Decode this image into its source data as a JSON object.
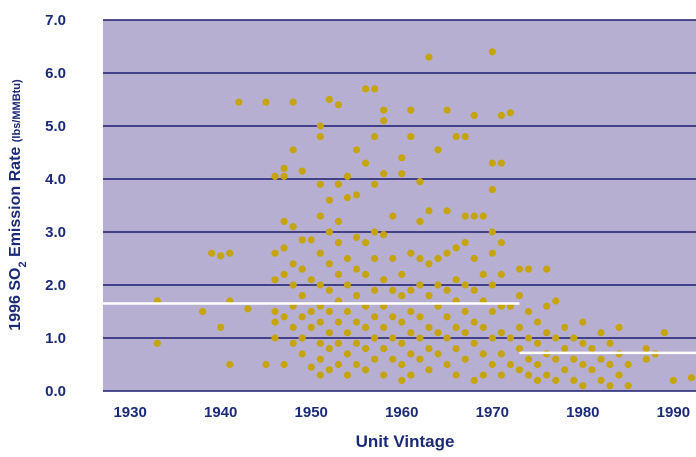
{
  "chart_data": {
    "type": "scatter",
    "xlabel": "Unit Vintage",
    "ylabel": {
      "pre": "1996 SO",
      "sub": "2",
      "post": " Emission Rate ",
      "unit": "(lbs/MMBtu)"
    },
    "xlim": [
      1927,
      1992.5
    ],
    "ylim": [
      0,
      7
    ],
    "xticks": [
      1930,
      1940,
      1950,
      1960,
      1970,
      1980,
      1990
    ],
    "yticks": [
      {
        "value": 0,
        "label": "0.0"
      },
      {
        "value": 1,
        "label": "1.0"
      },
      {
        "value": 2,
        "label": "2.0"
      },
      {
        "value": 3,
        "label": "3.0"
      },
      {
        "value": 4,
        "label": "4.0"
      },
      {
        "value": 5,
        "label": "5.0"
      },
      {
        "value": 6,
        "label": "6.0"
      },
      {
        "value": 7,
        "label": "7.0"
      }
    ],
    "grid": true,
    "background": "#b6afd2",
    "grid_color": "#1d1d6e",
    "color": "#c6a40c",
    "reference_lines": [
      {
        "x": [
          1927,
          1973
        ],
        "y": 1.65,
        "color": "#ffffff"
      },
      {
        "x": [
          1973,
          1992.5
        ],
        "y": 0.72,
        "color": "#ffffff"
      }
    ],
    "x": [
      1933,
      1933,
      1938,
      1939,
      1940,
      1940,
      1941,
      1941,
      1941,
      1942,
      1943,
      1945,
      1945,
      1946,
      1946,
      1946,
      1946,
      1946,
      1946,
      1947,
      1947,
      1947,
      1947,
      1947,
      1947,
      1947,
      1948,
      1948,
      1948,
      1948,
      1948,
      1948,
      1948,
      1948,
      1949,
      1949,
      1949,
      1949,
      1949,
      1949,
      1949,
      1950,
      1950,
      1950,
      1950,
      1950,
      1951,
      1951,
      1951,
      1951,
      1951,
      1951,
      1951,
      1951,
      1951,
      1951,
      1951,
      1952,
      1952,
      1952,
      1952,
      1952,
      1952,
      1952,
      1952,
      1952,
      1953,
      1953,
      1953,
      1953,
      1953,
      1953,
      1953,
      1953,
      1953,
      1954,
      1954,
      1954,
      1954,
      1954,
      1954,
      1954,
      1954,
      1955,
      1955,
      1955,
      1955,
      1955,
      1955,
      1955,
      1955,
      1956,
      1956,
      1956,
      1956,
      1956,
      1956,
      1956,
      1956,
      1957,
      1957,
      1957,
      1957,
      1957,
      1957,
      1957,
      1957,
      1957,
      1958,
      1958,
      1958,
      1958,
      1958,
      1958,
      1958,
      1958,
      1958,
      1959,
      1959,
      1959,
      1959,
      1959,
      1959,
      1960,
      1960,
      1960,
      1960,
      1960,
      1960,
      1960,
      1960,
      1961,
      1961,
      1961,
      1961,
      1961,
      1961,
      1961,
      1961,
      1962,
      1962,
      1962,
      1962,
      1962,
      1962,
      1962,
      1963,
      1963,
      1963,
      1963,
      1963,
      1963,
      1963,
      1964,
      1964,
      1964,
      1964,
      1964,
      1964,
      1965,
      1965,
      1965,
      1965,
      1965,
      1965,
      1965,
      1966,
      1966,
      1966,
      1966,
      1966,
      1966,
      1966,
      1967,
      1967,
      1967,
      1967,
      1967,
      1967,
      1967,
      1968,
      1968,
      1968,
      1968,
      1968,
      1968,
      1968,
      1969,
      1969,
      1969,
      1969,
      1969,
      1969,
      1970,
      1970,
      1970,
      1970,
      1970,
      1970,
      1970,
      1970,
      1970,
      1971,
      1971,
      1971,
      1971,
      1971,
      1971,
      1971,
      1971,
      1972,
      1972,
      1972,
      1972,
      1973,
      1973,
      1973,
      1973,
      1973,
      1974,
      1974,
      1974,
      1974,
      1974,
      1975,
      1975,
      1975,
      1975,
      1976,
      1976,
      1976,
      1976,
      1976,
      1977,
      1977,
      1977,
      1977,
      1978,
      1978,
      1978,
      1979,
      1979,
      1979,
      1980,
      1980,
      1980,
      1980,
      1981,
      1981,
      1982,
      1982,
      1982,
      1983,
      1983,
      1983,
      1984,
      1984,
      1984,
      1985,
      1985,
      1987,
      1987,
      1988,
      1989,
      1990,
      1992
    ],
    "values": [
      1.7,
      0.9,
      1.5,
      2.6,
      1.2,
      2.55,
      2.6,
      1.7,
      0.5,
      5.45,
      1.55,
      5.45,
      0.5,
      2.6,
      2.1,
      1.5,
      1.3,
      4.05,
      1.0,
      4.05,
      4.2,
      3.2,
      2.7,
      2.2,
      1.4,
      0.5,
      5.45,
      4.55,
      3.1,
      2.4,
      2.0,
      1.6,
      1.2,
      0.9,
      4.15,
      2.85,
      2.3,
      1.8,
      1.4,
      1.0,
      0.7,
      2.85,
      2.1,
      1.5,
      1.2,
      0.45,
      5.0,
      4.8,
      3.9,
      3.3,
      2.6,
      2.0,
      1.6,
      1.3,
      0.9,
      0.6,
      0.3,
      5.5,
      3.6,
      3.0,
      2.4,
      1.9,
      1.5,
      1.1,
      0.8,
      0.4,
      5.4,
      3.9,
      3.2,
      2.8,
      2.2,
      1.7,
      1.3,
      0.9,
      0.5,
      4.05,
      3.65,
      2.5,
      2.0,
      1.5,
      1.1,
      0.7,
      0.3,
      4.55,
      3.7,
      2.9,
      2.3,
      1.8,
      1.3,
      0.9,
      0.5,
      5.7,
      4.3,
      2.8,
      2.2,
      1.6,
      1.2,
      0.8,
      0.4,
      5.7,
      4.8,
      3.9,
      3.0,
      2.5,
      1.9,
      1.4,
      1.0,
      0.6,
      5.3,
      5.1,
      4.1,
      2.95,
      2.1,
      1.6,
      1.2,
      0.8,
      0.3,
      3.3,
      2.5,
      1.9,
      1.4,
      1.0,
      0.6,
      4.4,
      4.1,
      2.2,
      1.8,
      1.3,
      0.9,
      0.5,
      0.2,
      5.3,
      4.8,
      2.6,
      1.9,
      1.5,
      1.1,
      0.7,
      0.3,
      3.95,
      3.2,
      2.5,
      2.0,
      1.4,
      1.0,
      0.6,
      6.3,
      3.4,
      2.4,
      1.8,
      1.2,
      0.8,
      0.4,
      4.55,
      2.5,
      2.0,
      1.6,
      1.1,
      0.7,
      5.3,
      3.4,
      2.6,
      1.9,
      1.4,
      1.0,
      0.5,
      4.8,
      2.7,
      2.1,
      1.7,
      1.2,
      0.8,
      0.3,
      4.8,
      3.3,
      2.8,
      2.0,
      1.5,
      1.1,
      0.6,
      5.2,
      3.3,
      2.5,
      1.9,
      1.3,
      0.9,
      0.2,
      3.3,
      2.2,
      1.7,
      1.2,
      0.7,
      0.3,
      6.4,
      4.3,
      3.8,
      3.0,
      2.6,
      2.0,
      1.5,
      1.0,
      0.5,
      5.2,
      4.3,
      2.8,
      2.2,
      1.6,
      1.1,
      0.7,
      0.3,
      5.25,
      1.6,
      1.0,
      0.5,
      2.3,
      1.8,
      1.2,
      0.8,
      0.4,
      2.3,
      1.5,
      1.0,
      0.6,
      0.3,
      1.3,
      0.9,
      0.5,
      0.2,
      2.3,
      1.6,
      1.1,
      0.7,
      0.3,
      1.7,
      1.0,
      0.6,
      0.2,
      1.2,
      0.8,
      0.4,
      1.0,
      0.6,
      0.2,
      1.3,
      0.9,
      0.5,
      0.1,
      0.8,
      0.4,
      1.1,
      0.6,
      0.2,
      0.9,
      0.5,
      0.1,
      1.2,
      0.7,
      0.3,
      0.5,
      0.1,
      0.8,
      0.6,
      0.7,
      1.1,
      0.2,
      0.25
    ]
  }
}
